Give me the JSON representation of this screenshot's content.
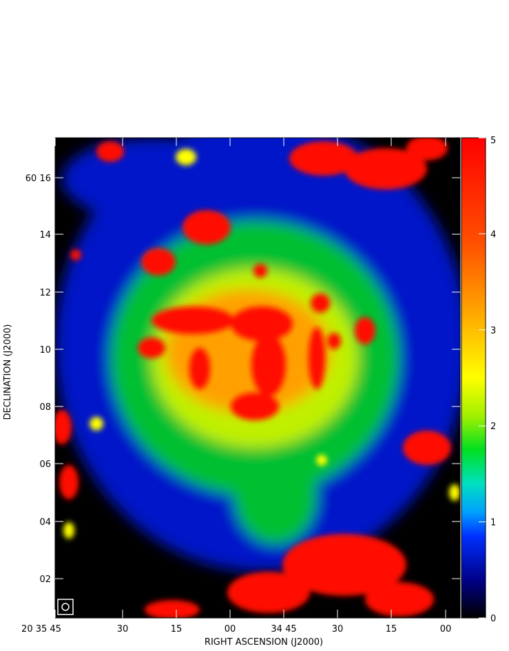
{
  "axes": {
    "x_label": "RIGHT ASCENSION (J2000)",
    "y_label": "DECLINATION (J2000)",
    "x_ticks": [
      "20 35 45",
      "30",
      "15",
      "00",
      "34 45",
      "30",
      "15",
      "00"
    ],
    "y_ticks": [
      "60 16",
      "14",
      "12",
      "10",
      "08",
      "06",
      "04",
      "02"
    ]
  },
  "colorbar": {
    "range": [
      0,
      5
    ],
    "ticks": [
      0,
      1,
      2,
      3,
      4,
      5
    ]
  }
}
